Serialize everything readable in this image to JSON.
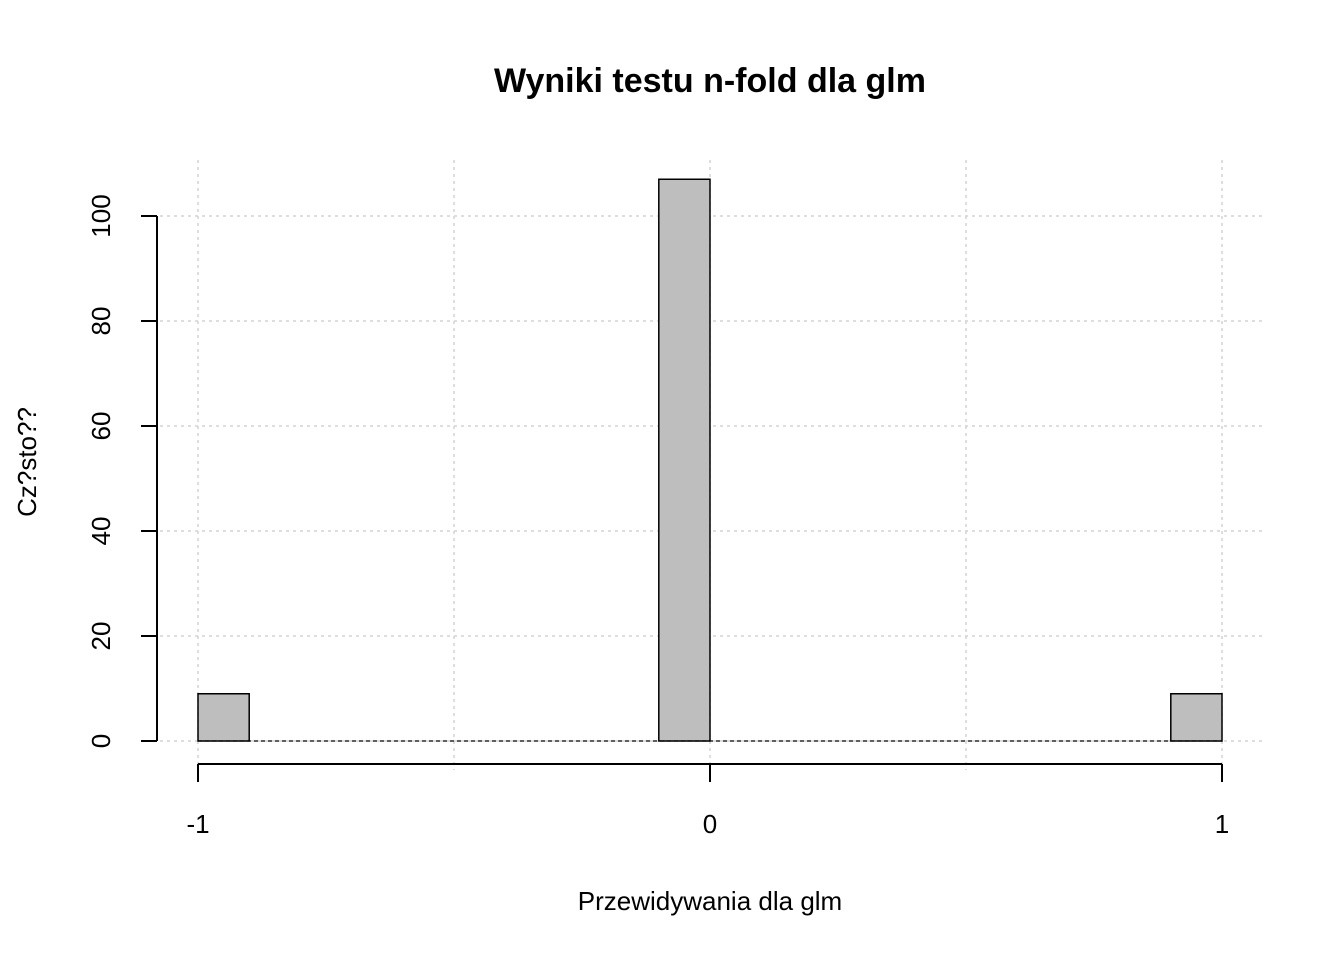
{
  "chart_data": {
    "type": "bar",
    "title": "Wyniki testu n-fold dla glm",
    "xlabel": "Przewidywania dla glm",
    "ylabel": "Cz?sto??",
    "x_ticks": [
      "-1",
      "0",
      "1"
    ],
    "y_ticks": [
      "0",
      "20",
      "40",
      "60",
      "80",
      "100"
    ],
    "bins": [
      {
        "from": -1.0,
        "to": -0.9,
        "value": 9
      },
      {
        "from": -0.1,
        "to": 0.0,
        "value": 107
      },
      {
        "from": 0.9,
        "to": 1.0,
        "value": 9
      }
    ],
    "xlim": [
      -1,
      1
    ],
    "ylim": [
      0,
      110
    ],
    "grid": true,
    "colors": {
      "bar_fill": "#bebebe",
      "bar_stroke": "#000000",
      "grid": "#d3d3d3"
    }
  }
}
